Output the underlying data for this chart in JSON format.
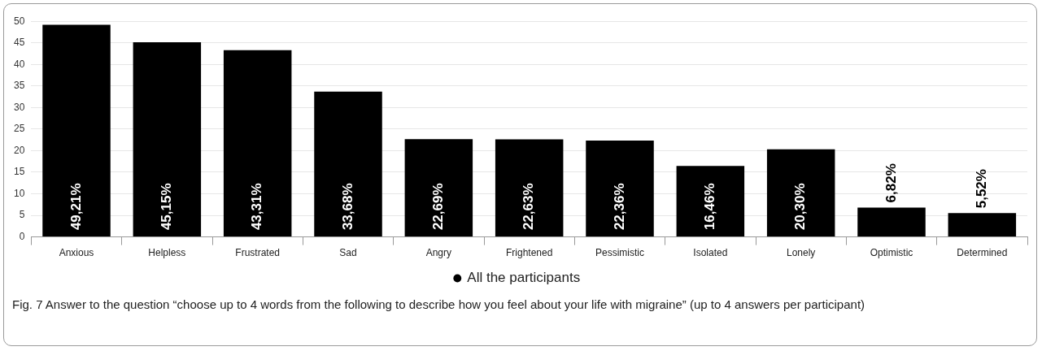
{
  "chart_data": {
    "type": "bar",
    "categories": [
      "Anxious",
      "Helpless",
      "Frustrated",
      "Sad",
      "Angry",
      "Frightened",
      "Pessimistic",
      "Isolated",
      "Lonely",
      "Optimistic",
      "Determined"
    ],
    "series": [
      {
        "name": "All the participants",
        "color": "#000000",
        "values": [
          49.21,
          45.15,
          43.31,
          33.68,
          22.69,
          22.63,
          22.36,
          16.46,
          20.3,
          6.82,
          5.52
        ],
        "value_labels": [
          "49,21%",
          "45,15%",
          "43,31%",
          "33,68%",
          "22,69%",
          "22,63%",
          "22,36%",
          "16,46%",
          "20,30%",
          "6,82%",
          "5,52%"
        ]
      }
    ],
    "ylim": [
      0,
      50
    ],
    "yticks": [
      0,
      5,
      10,
      15,
      20,
      25,
      30,
      35,
      40,
      45,
      50
    ],
    "grid": "y",
    "legend": "bottom",
    "annotations": [
      "Fig. 7  Answer to the question “choose up to 4 words from the following to describe how you feel about your life with migraine” (up to 4 answers per participant)"
    ]
  }
}
